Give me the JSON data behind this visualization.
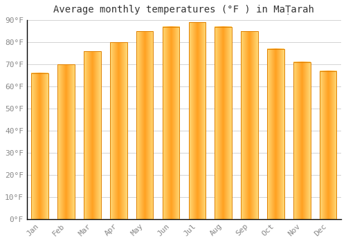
{
  "title": "Average monthly temperatures (°F ) in MaṬarah",
  "months": [
    "Jan",
    "Feb",
    "Mar",
    "Apr",
    "May",
    "Jun",
    "Jul",
    "Aug",
    "Sep",
    "Oct",
    "Nov",
    "Dec"
  ],
  "values": [
    66,
    70,
    76,
    80,
    85,
    87,
    89,
    87,
    85,
    77,
    71,
    67
  ],
  "ylim": [
    0,
    90
  ],
  "yticks": [
    0,
    10,
    20,
    30,
    40,
    50,
    60,
    70,
    80,
    90
  ],
  "ytick_labels": [
    "0°F",
    "10°F",
    "20°F",
    "30°F",
    "40°F",
    "50°F",
    "60°F",
    "70°F",
    "80°F",
    "90°F"
  ],
  "background_color": "#ffffff",
  "grid_color": "#cccccc",
  "bar_color_center": "#FFA020",
  "bar_color_edge": "#FFD060",
  "bar_edge_color": "#E08000",
  "title_fontsize": 10,
  "tick_fontsize": 8,
  "figsize": [
    5.0,
    3.5
  ],
  "dpi": 100
}
